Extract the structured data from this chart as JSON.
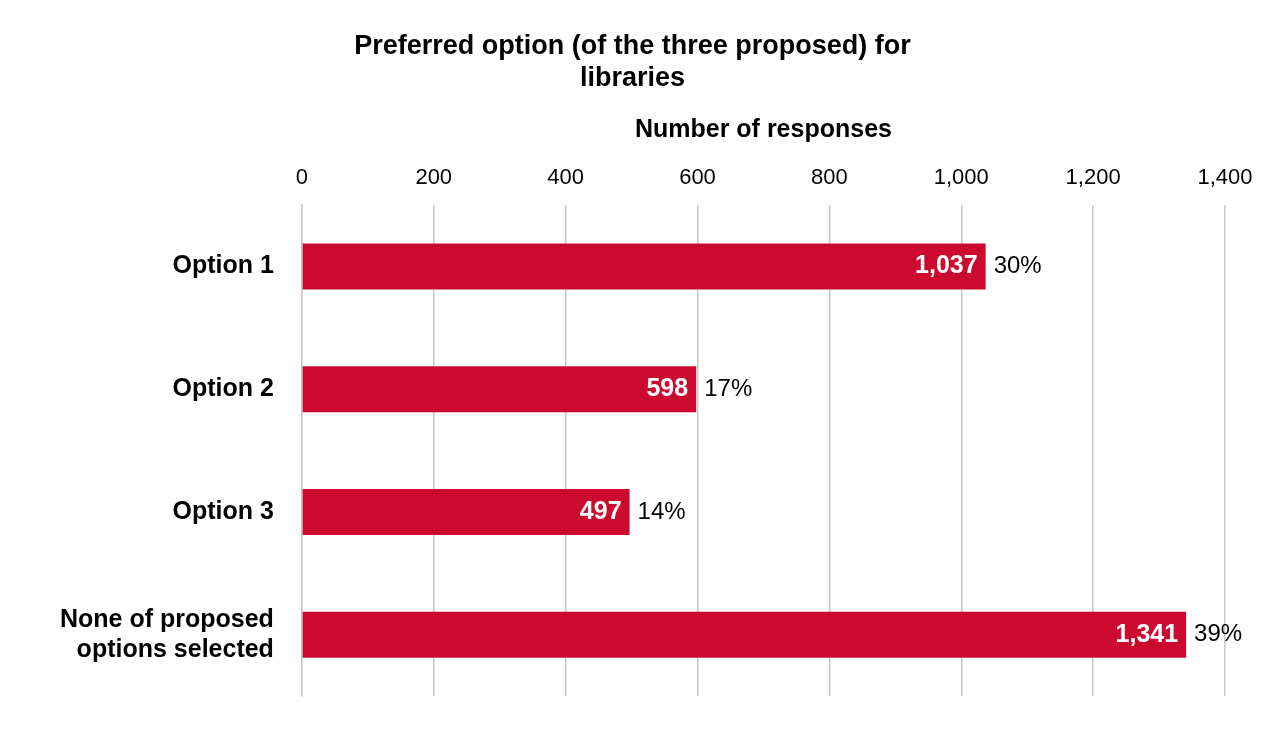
{
  "chart_data": {
    "type": "bar",
    "orientation": "horizontal",
    "title": "Preferred option (of the three proposed) for libraries",
    "xlabel": "Number of responses",
    "categories": [
      "Option 1",
      "Option 2",
      "Option 3",
      "None of proposed options selected"
    ],
    "values": [
      1037,
      598,
      497,
      1341
    ],
    "color": "#cc0a2f",
    "value_labels": [
      "1,037",
      "598",
      "497",
      "1,341"
    ],
    "annotations": [
      {
        "text": "30%",
        "x": 1037,
        "y": "Option 1"
      },
      {
        "text": "17%",
        "x": 598,
        "y": "Option 2"
      },
      {
        "text": "14%",
        "x": 497,
        "y": "Option 3"
      },
      {
        "text": "39%",
        "x": 1341,
        "y": "None of proposed options selected"
      }
    ],
    "xlim": [
      0,
      1400
    ],
    "xticks": [
      0,
      200,
      400,
      600,
      800,
      {
        "value": 1000,
        "label": "1,000"
      },
      {
        "value": 1200,
        "label": "1,200"
      },
      {
        "value": 1400,
        "label": "1,400"
      }
    ],
    "grid": "x",
    "legend": false
  }
}
